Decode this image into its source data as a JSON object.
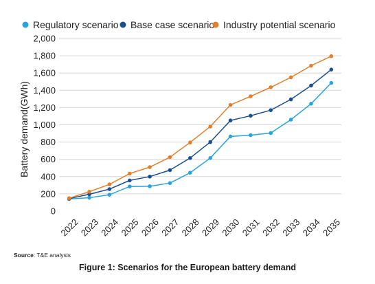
{
  "chart_data": {
    "type": "line",
    "categories": [
      "2022",
      "2023",
      "2024",
      "2025",
      "2026",
      "2027",
      "2028",
      "2029",
      "2030",
      "2031",
      "2032",
      "2033",
      "2034",
      "2035"
    ],
    "series": [
      {
        "name": "Regulatory scenario",
        "color": "#29a3dc",
        "values": [
          140,
          155,
          190,
          285,
          288,
          325,
          445,
          615,
          865,
          880,
          905,
          1060,
          1245,
          1485
        ]
      },
      {
        "name": "Base case scenario",
        "color": "#1a4f8f",
        "values": [
          145,
          195,
          255,
          355,
          400,
          475,
          615,
          800,
          1050,
          1105,
          1170,
          1295,
          1455,
          1640
        ]
      },
      {
        "name": "Industry potential scenario",
        "color": "#e07f2c",
        "values": [
          150,
          225,
          310,
          435,
          510,
          625,
          795,
          980,
          1230,
          1330,
          1435,
          1550,
          1685,
          1795
        ]
      }
    ],
    "ylabel": "Battery demand(GWh)",
    "xlabel": "",
    "ylim": [
      0,
      2000
    ],
    "yticks": [
      "0",
      "200",
      "400",
      "600",
      "800",
      "1,000",
      "1,200",
      "1,400",
      "1,600",
      "1,800",
      "2,000"
    ],
    "grid": true,
    "legend_position": "top"
  },
  "source": {
    "label": "Source",
    "text": ": T&E analysis"
  },
  "caption": "Figure 1: Scenarios for the European battery demand"
}
